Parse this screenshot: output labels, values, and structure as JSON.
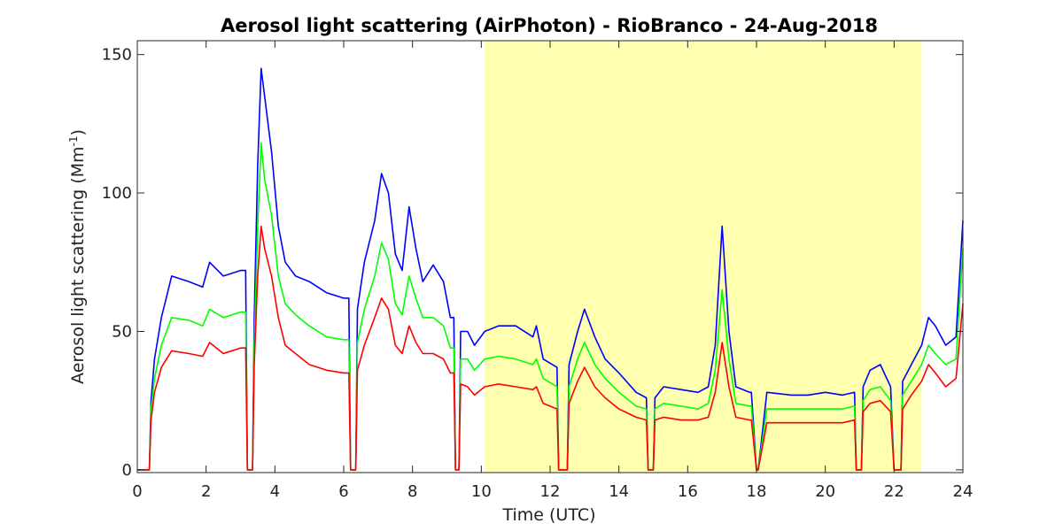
{
  "chart_data": {
    "type": "line",
    "title": "Aerosol light scattering (AirPhoton) - RioBranco - 24-Aug-2018",
    "xlabel": "Time (UTC)",
    "ylabel_prefix": "Aerosol light scattering (Mm",
    "ylabel_sup": "-1",
    "ylabel_suffix": ")",
    "xlim": [
      0,
      24
    ],
    "ylim": [
      -1,
      155
    ],
    "xticks": [
      0,
      2,
      4,
      6,
      8,
      10,
      12,
      14,
      16,
      18,
      20,
      22,
      24
    ],
    "yticks": [
      0,
      50,
      100,
      150
    ],
    "grid": false,
    "legend": "none",
    "highlight": {
      "x_start": 10.1,
      "x_end": 22.8,
      "color": "#ffffb0"
    },
    "colors": {
      "blue": "#0000ff",
      "green": "#00ff00",
      "red": "#ff0000",
      "axis": "#262626"
    },
    "series": [
      {
        "color": "blue",
        "x": [
          0,
          0.35,
          0.4,
          0.5,
          0.7,
          1.0,
          1.5,
          1.9,
          2.1,
          2.5,
          3.0,
          3.15,
          3.2,
          3.35,
          3.4,
          3.5,
          3.6,
          3.7,
          3.9,
          4.1,
          4.3,
          4.6,
          5.0,
          5.5,
          6.0,
          6.15,
          6.2,
          6.35,
          6.4,
          6.6,
          6.9,
          7.1,
          7.3,
          7.5,
          7.7,
          7.9,
          8.1,
          8.3,
          8.6,
          8.9,
          9.1,
          9.2,
          9.25,
          9.35,
          9.4,
          9.6,
          9.8,
          10.1,
          10.5,
          11.0,
          11.5,
          11.6,
          11.8,
          12.2,
          12.25,
          12.5,
          12.55,
          12.8,
          13.0,
          13.3,
          13.6,
          14.0,
          14.5,
          14.8,
          14.85,
          15.0,
          15.05,
          15.3,
          15.8,
          16.3,
          16.6,
          16.8,
          17.0,
          17.2,
          17.4,
          17.8,
          17.85,
          18.0,
          18.05,
          18.3,
          19.0,
          19.5,
          20.0,
          20.5,
          20.85,
          20.9,
          21.05,
          21.1,
          21.3,
          21.6,
          21.9,
          22.0,
          22.2,
          22.25,
          22.5,
          22.8,
          23.0,
          23.2,
          23.5,
          23.8,
          24.0
        ],
        "y": [
          0,
          0,
          25,
          40,
          55,
          70,
          68,
          66,
          75,
          70,
          72,
          72,
          0,
          0,
          55,
          110,
          145,
          135,
          115,
          88,
          75,
          70,
          68,
          64,
          62,
          62,
          0,
          0,
          58,
          75,
          90,
          107,
          100,
          78,
          72,
          95,
          80,
          68,
          74,
          68,
          55,
          55,
          0,
          0,
          50,
          50,
          45,
          50,
          52,
          52,
          48,
          52,
          40,
          37,
          0,
          0,
          38,
          50,
          58,
          48,
          40,
          35,
          28,
          26,
          0,
          0,
          26,
          30,
          29,
          28,
          30,
          45,
          88,
          50,
          30,
          28,
          28,
          0,
          0,
          28,
          27,
          27,
          28,
          27,
          28,
          0,
          0,
          30,
          36,
          38,
          30,
          0,
          0,
          32,
          38,
          45,
          55,
          52,
          45,
          48,
          90
        ]
      },
      {
        "color": "green",
        "x": [
          0,
          0.35,
          0.4,
          0.5,
          0.7,
          1.0,
          1.5,
          1.9,
          2.1,
          2.5,
          3.0,
          3.15,
          3.2,
          3.35,
          3.4,
          3.5,
          3.6,
          3.7,
          3.9,
          4.1,
          4.3,
          4.6,
          5.0,
          5.5,
          6.0,
          6.15,
          6.2,
          6.35,
          6.4,
          6.6,
          6.9,
          7.1,
          7.3,
          7.5,
          7.7,
          7.9,
          8.1,
          8.3,
          8.6,
          8.9,
          9.1,
          9.2,
          9.25,
          9.35,
          9.4,
          9.6,
          9.8,
          10.1,
          10.5,
          11.0,
          11.5,
          11.6,
          11.8,
          12.2,
          12.25,
          12.5,
          12.55,
          12.8,
          13.0,
          13.3,
          13.6,
          14.0,
          14.5,
          14.8,
          14.85,
          15.0,
          15.05,
          15.3,
          15.8,
          16.3,
          16.6,
          16.8,
          17.0,
          17.2,
          17.4,
          17.8,
          17.85,
          18.0,
          18.05,
          18.3,
          19.0,
          19.5,
          20.0,
          20.5,
          20.85,
          20.9,
          21.05,
          21.1,
          21.3,
          21.6,
          21.9,
          22.0,
          22.2,
          22.25,
          22.5,
          22.8,
          23.0,
          23.2,
          23.5,
          23.8,
          24.0
        ],
        "y": [
          0,
          0,
          22,
          33,
          45,
          55,
          54,
          52,
          58,
          55,
          57,
          57,
          0,
          0,
          45,
          88,
          118,
          105,
          92,
          70,
          60,
          56,
          52,
          48,
          47,
          47,
          0,
          0,
          46,
          58,
          70,
          82,
          76,
          60,
          56,
          70,
          62,
          55,
          55,
          52,
          44,
          44,
          0,
          0,
          40,
          40,
          36,
          40,
          41,
          40,
          38,
          40,
          33,
          30,
          0,
          0,
          30,
          40,
          46,
          38,
          33,
          28,
          23,
          22,
          0,
          0,
          22,
          24,
          23,
          22,
          24,
          36,
          65,
          40,
          24,
          23,
          23,
          0,
          0,
          22,
          22,
          22,
          22,
          22,
          23,
          0,
          0,
          25,
          29,
          30,
          25,
          0,
          0,
          27,
          32,
          38,
          45,
          42,
          38,
          40,
          80
        ]
      },
      {
        "color": "red",
        "x": [
          0,
          0.35,
          0.4,
          0.5,
          0.7,
          1.0,
          1.5,
          1.9,
          2.1,
          2.5,
          3.0,
          3.15,
          3.2,
          3.35,
          3.4,
          3.5,
          3.6,
          3.7,
          3.9,
          4.1,
          4.3,
          4.6,
          5.0,
          5.5,
          6.0,
          6.15,
          6.2,
          6.35,
          6.4,
          6.6,
          6.9,
          7.1,
          7.3,
          7.5,
          7.7,
          7.9,
          8.1,
          8.3,
          8.6,
          8.9,
          9.1,
          9.2,
          9.25,
          9.35,
          9.4,
          9.6,
          9.8,
          10.1,
          10.5,
          11.0,
          11.5,
          11.6,
          11.8,
          12.2,
          12.25,
          12.5,
          12.55,
          12.8,
          13.0,
          13.3,
          13.6,
          14.0,
          14.5,
          14.8,
          14.85,
          15.0,
          15.05,
          15.3,
          15.8,
          16.3,
          16.6,
          16.8,
          17.0,
          17.2,
          17.4,
          17.8,
          17.85,
          18.0,
          18.05,
          18.3,
          19.0,
          19.5,
          20.0,
          20.5,
          20.85,
          20.9,
          21.05,
          21.1,
          21.3,
          21.6,
          21.9,
          22.0,
          22.2,
          22.25,
          22.5,
          22.8,
          23.0,
          23.2,
          23.5,
          23.8,
          24.0
        ],
        "y": [
          0,
          0,
          18,
          28,
          37,
          43,
          42,
          41,
          46,
          42,
          44,
          44,
          0,
          0,
          38,
          70,
          88,
          80,
          70,
          55,
          45,
          42,
          38,
          36,
          35,
          35,
          0,
          0,
          36,
          45,
          55,
          62,
          58,
          45,
          42,
          52,
          46,
          42,
          42,
          40,
          35,
          35,
          0,
          0,
          31,
          30,
          27,
          30,
          31,
          30,
          29,
          30,
          24,
          22,
          0,
          0,
          24,
          32,
          37,
          30,
          26,
          22,
          19,
          18,
          0,
          0,
          18,
          19,
          18,
          18,
          19,
          28,
          46,
          30,
          19,
          18,
          18,
          0,
          0,
          17,
          17,
          17,
          17,
          17,
          18,
          0,
          0,
          21,
          24,
          25,
          21,
          0,
          0,
          22,
          27,
          32,
          38,
          35,
          30,
          33,
          60
        ]
      }
    ]
  }
}
